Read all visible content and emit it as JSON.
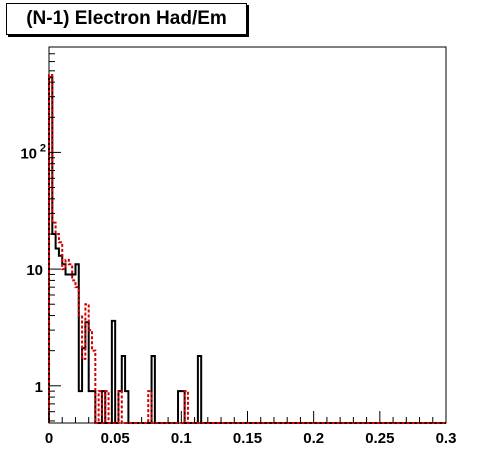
{
  "title": "(N-1) Electron Had/Em",
  "chart_data": {
    "type": "line",
    "title": "(N-1) Electron Had/Em",
    "xlabel": "",
    "ylabel": "",
    "xlim": [
      0,
      0.3
    ],
    "ylim": [
      0.48,
      800
    ],
    "yscale": "log",
    "grid": false,
    "x_ticks": [
      {
        "value": 0,
        "label": "0"
      },
      {
        "value": 0.05,
        "label": "0.05"
      },
      {
        "value": 0.1,
        "label": "0.1"
      },
      {
        "value": 0.15,
        "label": "0.15"
      },
      {
        "value": 0.2,
        "label": "0.2"
      },
      {
        "value": 0.25,
        "label": "0.25"
      },
      {
        "value": 0.3,
        "label": "0.3"
      }
    ],
    "y_ticks": [
      {
        "value": 1,
        "label": "1"
      },
      {
        "value": 10,
        "label": "10"
      },
      {
        "value": 100,
        "label": "10",
        "exponent": "2"
      }
    ],
    "bin_width": 0.0025,
    "series": [
      {
        "color": "#000000",
        "style": "solid",
        "values": [
          440,
          20,
          15,
          13,
          11,
          9,
          9,
          9,
          11,
          0.9,
          2.1,
          3.5,
          0.9,
          0.9,
          0,
          0,
          0.9,
          0,
          0,
          3.6,
          0,
          0.9,
          1.8,
          0.9,
          0,
          0,
          0,
          0,
          0,
          0,
          0,
          1.8,
          0,
          0,
          0,
          0,
          0,
          0,
          0,
          0.9,
          0.9,
          0,
          0,
          0,
          0,
          1.8
        ]
      },
      {
        "color": "#d40000",
        "style": "dashed",
        "values": [
          460,
          25,
          20,
          17,
          10,
          12,
          11,
          8,
          7,
          4,
          1.7,
          5,
          3,
          2,
          0,
          0.9,
          0,
          0.9,
          0,
          0,
          0,
          0.9,
          0,
          0,
          0,
          0,
          0,
          0,
          0,
          0,
          0.9,
          0,
          0,
          0,
          0,
          0,
          0,
          0,
          0,
          0,
          0,
          0.9,
          0,
          0,
          0,
          0
        ]
      }
    ]
  }
}
